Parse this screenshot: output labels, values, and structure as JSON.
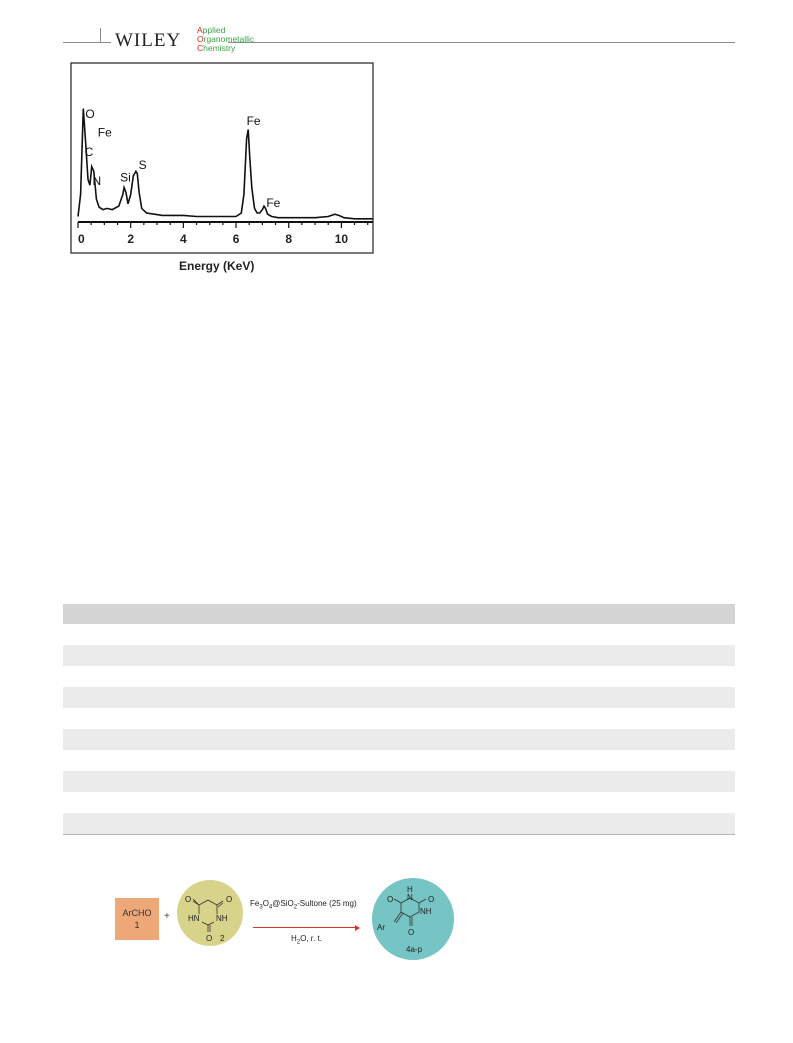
{
  "header": {
    "publisher": "WILEY",
    "journal_lines": [
      {
        "cap": "A",
        "rest": "pplied"
      },
      {
        "cap": "O",
        "rest": "rganometallic"
      },
      {
        "cap": "C",
        "rest": "hemistry"
      }
    ]
  },
  "chart_data": {
    "type": "line",
    "title": "",
    "xlabel": "Energy (KeV)",
    "ylabel": "",
    "xlim": [
      0,
      11.2
    ],
    "ylim": [
      0,
      100
    ],
    "xticks": [
      0,
      2,
      4,
      6,
      8,
      10
    ],
    "tick_labels": [
      "0",
      "2",
      "4",
      "6",
      "8",
      "10"
    ],
    "grid": false,
    "series": [
      {
        "x": [
          0,
          0.1,
          0.2,
          0.28,
          0.38,
          0.45,
          0.52,
          0.6,
          0.7,
          0.8,
          0.95,
          1.1,
          1.3,
          1.55,
          1.7,
          1.75,
          1.82,
          1.9,
          2.0,
          2.1,
          2.2,
          2.25,
          2.32,
          2.42,
          2.6,
          2.9,
          3.2,
          3.6,
          4.0,
          4.5,
          5.0,
          5.5,
          6.0,
          6.2,
          6.3,
          6.4,
          6.46,
          6.52,
          6.6,
          6.7,
          6.8,
          6.9,
          7.0,
          7.06,
          7.12,
          7.2,
          7.35,
          7.6,
          8.0,
          8.5,
          9.0,
          9.5,
          9.75,
          9.9,
          10.1,
          10.5,
          11.0,
          11.2
        ],
        "y": [
          3,
          22,
          96,
          70,
          35,
          30,
          46,
          42,
          18,
          11,
          9,
          10,
          9,
          12,
          22,
          28,
          24,
          14,
          22,
          38,
          42,
          40,
          24,
          10,
          6,
          5,
          4,
          4,
          4,
          3,
          3,
          3,
          3,
          6,
          22,
          70,
          78,
          55,
          28,
          10,
          6,
          6,
          9,
          12,
          10,
          5,
          3,
          2,
          2,
          2,
          2,
          3,
          5,
          4,
          2,
          1,
          1,
          1
        ]
      }
    ],
    "annotations": [
      {
        "text": "O",
        "x": 0.28,
        "y": 88
      },
      {
        "text": "Fe",
        "x": 0.75,
        "y": 72
      },
      {
        "text": "C",
        "x": 0.25,
        "y": 55
      },
      {
        "text": "N",
        "x": 0.55,
        "y": 30
      },
      {
        "text": "Si",
        "x": 1.6,
        "y": 33
      },
      {
        "text": "S",
        "x": 2.3,
        "y": 44
      },
      {
        "text": "Fe",
        "x": 6.4,
        "y": 82
      },
      {
        "text": "Fe",
        "x": 7.15,
        "y": 11
      }
    ]
  },
  "scheme": {
    "reactant1": {
      "name": "ArCHO",
      "number": "1"
    },
    "plus": "+",
    "reactant2": {
      "number": "2"
    },
    "condition_top_parts": [
      {
        "t": "Fe"
      },
      {
        "t": "3",
        "sub": true
      },
      {
        "t": "O"
      },
      {
        "t": "4",
        "sub": true
      },
      {
        "t": "@SiO"
      },
      {
        "t": "2",
        "sub": true
      },
      {
        "t": "-Sultone (25 mg)"
      }
    ],
    "condition_bottom_parts": [
      {
        "t": "H"
      },
      {
        "t": "2",
        "sub": true
      },
      {
        "t": "O, r. t."
      }
    ],
    "product": {
      "label": "4a-p"
    },
    "atoms": {
      "O": "O",
      "N": "N",
      "H": "H",
      "NH": "NH",
      "HN": "HN",
      "Ar": "Ar"
    }
  }
}
